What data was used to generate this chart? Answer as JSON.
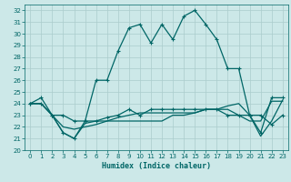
{
  "xlabel": "Humidex (Indice chaleur)",
  "xlim": [
    -0.5,
    23.5
  ],
  "ylim": [
    20,
    32.5
  ],
  "yticks": [
    20,
    21,
    22,
    23,
    24,
    25,
    26,
    27,
    28,
    29,
    30,
    31,
    32
  ],
  "xticks": [
    0,
    1,
    2,
    3,
    4,
    5,
    6,
    7,
    8,
    9,
    10,
    11,
    12,
    13,
    14,
    15,
    16,
    17,
    18,
    19,
    20,
    21,
    22,
    23
  ],
  "bg_color": "#cce8e8",
  "grid_color": "#aacccc",
  "line_color": "#006666",
  "line1_x": [
    0,
    1,
    2,
    3,
    4,
    5,
    6,
    7,
    8,
    9,
    10,
    11,
    12,
    13,
    14,
    15,
    16,
    17,
    18,
    19,
    20,
    21,
    22,
    23
  ],
  "line1_y": [
    24.0,
    24.5,
    23.0,
    23.0,
    22.5,
    22.5,
    26.0,
    26.0,
    28.5,
    30.5,
    30.8,
    29.2,
    30.8,
    29.5,
    31.5,
    32.0,
    30.8,
    29.5,
    27.0,
    27.0,
    23.0,
    23.0,
    22.2,
    23.0
  ],
  "line2_x": [
    0,
    1,
    2,
    3,
    4,
    5,
    6,
    7,
    8,
    9,
    10,
    11,
    12,
    13,
    14,
    15,
    16,
    17,
    18,
    19,
    20,
    21,
    22,
    23
  ],
  "line2_y": [
    24.0,
    24.0,
    23.0,
    21.5,
    21.0,
    22.3,
    22.5,
    22.5,
    22.8,
    23.0,
    23.2,
    23.2,
    23.2,
    23.2,
    23.2,
    23.2,
    23.5,
    23.5,
    23.5,
    23.0,
    22.5,
    22.5,
    24.2,
    24.2
  ],
  "line3_x": [
    0,
    1,
    2,
    3,
    4,
    5,
    6,
    7,
    8,
    9,
    10,
    11,
    12,
    13,
    14,
    15,
    16,
    17,
    18,
    19,
    20,
    21,
    22,
    23
  ],
  "line3_y": [
    24.0,
    24.0,
    23.0,
    22.0,
    21.8,
    22.0,
    22.2,
    22.5,
    22.5,
    22.5,
    22.5,
    22.5,
    22.5,
    23.0,
    23.0,
    23.2,
    23.5,
    23.5,
    23.8,
    24.0,
    23.0,
    21.2,
    22.5,
    24.3
  ],
  "line4_x": [
    0,
    1,
    2,
    3,
    4,
    5,
    6,
    7,
    8,
    9,
    10,
    11,
    12,
    13,
    14,
    15,
    16,
    17,
    18,
    19,
    20,
    21,
    22,
    23
  ],
  "line4_y": [
    24.0,
    24.0,
    23.0,
    21.5,
    21.0,
    22.5,
    22.5,
    22.8,
    23.0,
    23.5,
    23.0,
    23.5,
    23.5,
    23.5,
    23.5,
    23.5,
    23.5,
    23.5,
    23.0,
    23.0,
    23.0,
    21.5,
    24.5,
    24.5
  ]
}
